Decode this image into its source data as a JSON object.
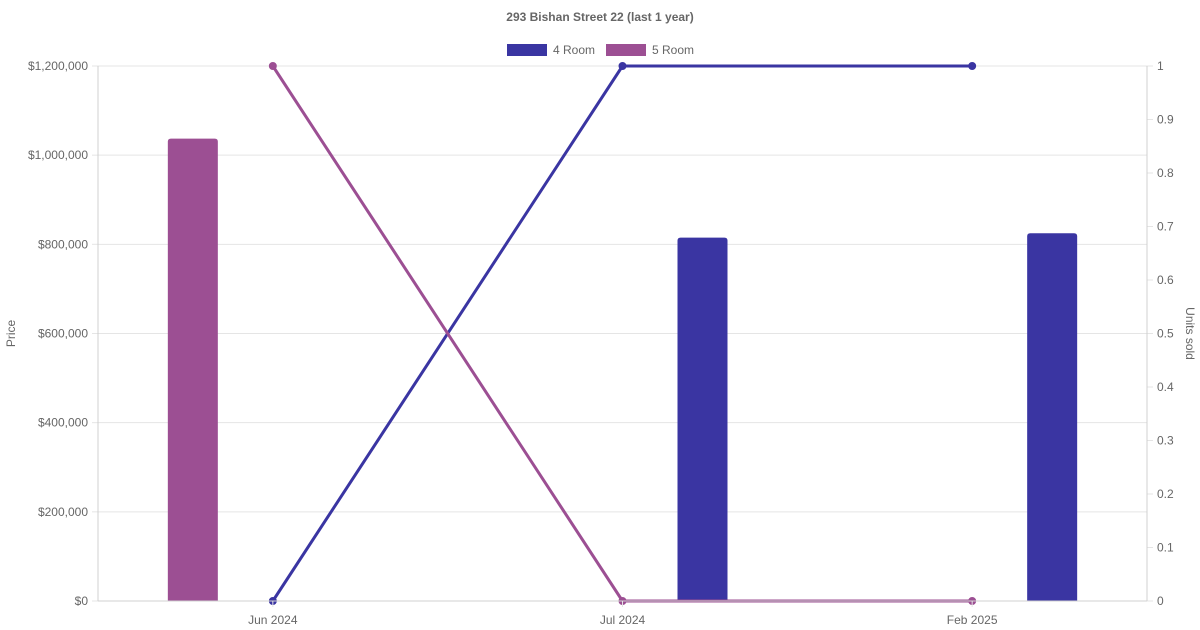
{
  "chart_data": {
    "type": "bar",
    "title": "293 Bishan Street 22 (last 1 year)",
    "categories": [
      "Jun 2024",
      "Jul 2024",
      "Feb 2025"
    ],
    "y_left": {
      "label": "Price",
      "min": 0,
      "max": 1200000,
      "ticks": [
        0,
        200000,
        400000,
        600000,
        800000,
        1000000,
        1200000
      ],
      "tick_labels": [
        "$0",
        "$200,000",
        "$400,000",
        "$600,000",
        "$800,000",
        "$1,000,000",
        "$1,200,000"
      ]
    },
    "y_right": {
      "label": "Units sold",
      "min": 0,
      "max": 1,
      "ticks": [
        0,
        0.1,
        0.2,
        0.3,
        0.4,
        0.5,
        0.6,
        0.7,
        0.8,
        0.9,
        1
      ],
      "tick_labels": [
        "0",
        "0.1",
        "0.2",
        "0.3",
        "0.4",
        "0.5",
        "0.6",
        "0.7",
        "0.8",
        "0.9",
        "1"
      ]
    },
    "series": [
      {
        "name": "4 Room",
        "color": "#3a35a2",
        "bar_values": [
          null,
          815000,
          825000
        ],
        "line_values": [
          0,
          1,
          1
        ]
      },
      {
        "name": "5 Room",
        "color": "#9c4f93",
        "bar_values": [
          1037000,
          null,
          null
        ],
        "line_values": [
          1,
          0,
          0
        ]
      }
    ],
    "legend": {
      "position": "top"
    },
    "grid": true
  }
}
